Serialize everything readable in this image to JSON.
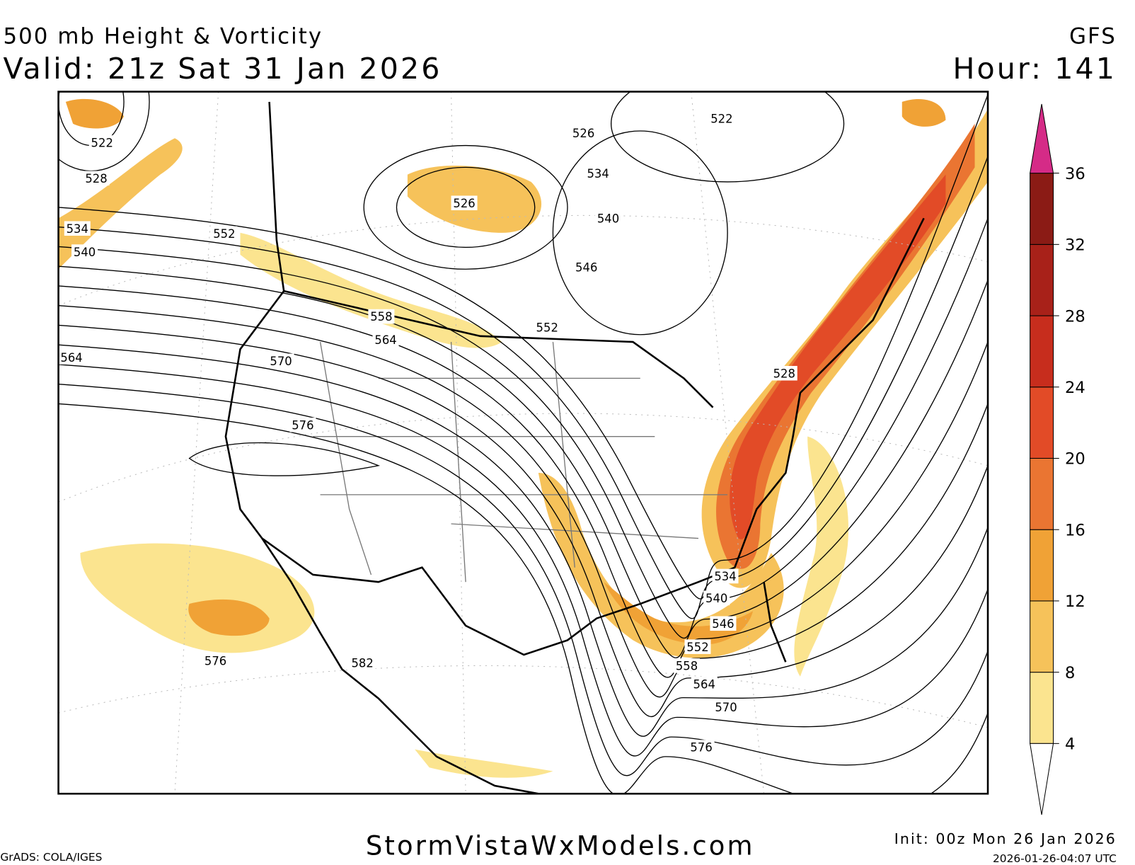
{
  "header": {
    "title": "500 mb Height & Vorticity",
    "valid": "Valid: 21z Sat 31 Jan 2026",
    "model": "GFS",
    "hour": "Hour: 141"
  },
  "contour_labels": [
    "522",
    "528",
    "534",
    "540",
    "552",
    "526",
    "526",
    "534",
    "540",
    "546",
    "522",
    "558",
    "564",
    "552",
    "570",
    "564",
    "576",
    "528",
    "534",
    "540",
    "546",
    "552",
    "558",
    "564",
    "570",
    "576",
    "582",
    "576"
  ],
  "colorbar": {
    "ticks": [
      4,
      8,
      12,
      16,
      20,
      24,
      28,
      32,
      36
    ],
    "colors": [
      "#fbe48f",
      "#f6c25a",
      "#f0a236",
      "#ea7532",
      "#e24b27",
      "#c72d1d",
      "#a82119",
      "#8b1b15"
    ],
    "over_color": "#d52b87"
  },
  "footer": {
    "site": "StormVistaWxModels.com",
    "init": "Init: 00z Mon 26 Jan 2026",
    "timestamp": "2026-01-26-04:07 UTC",
    "credit": "GrADS: COLA/IGES"
  }
}
